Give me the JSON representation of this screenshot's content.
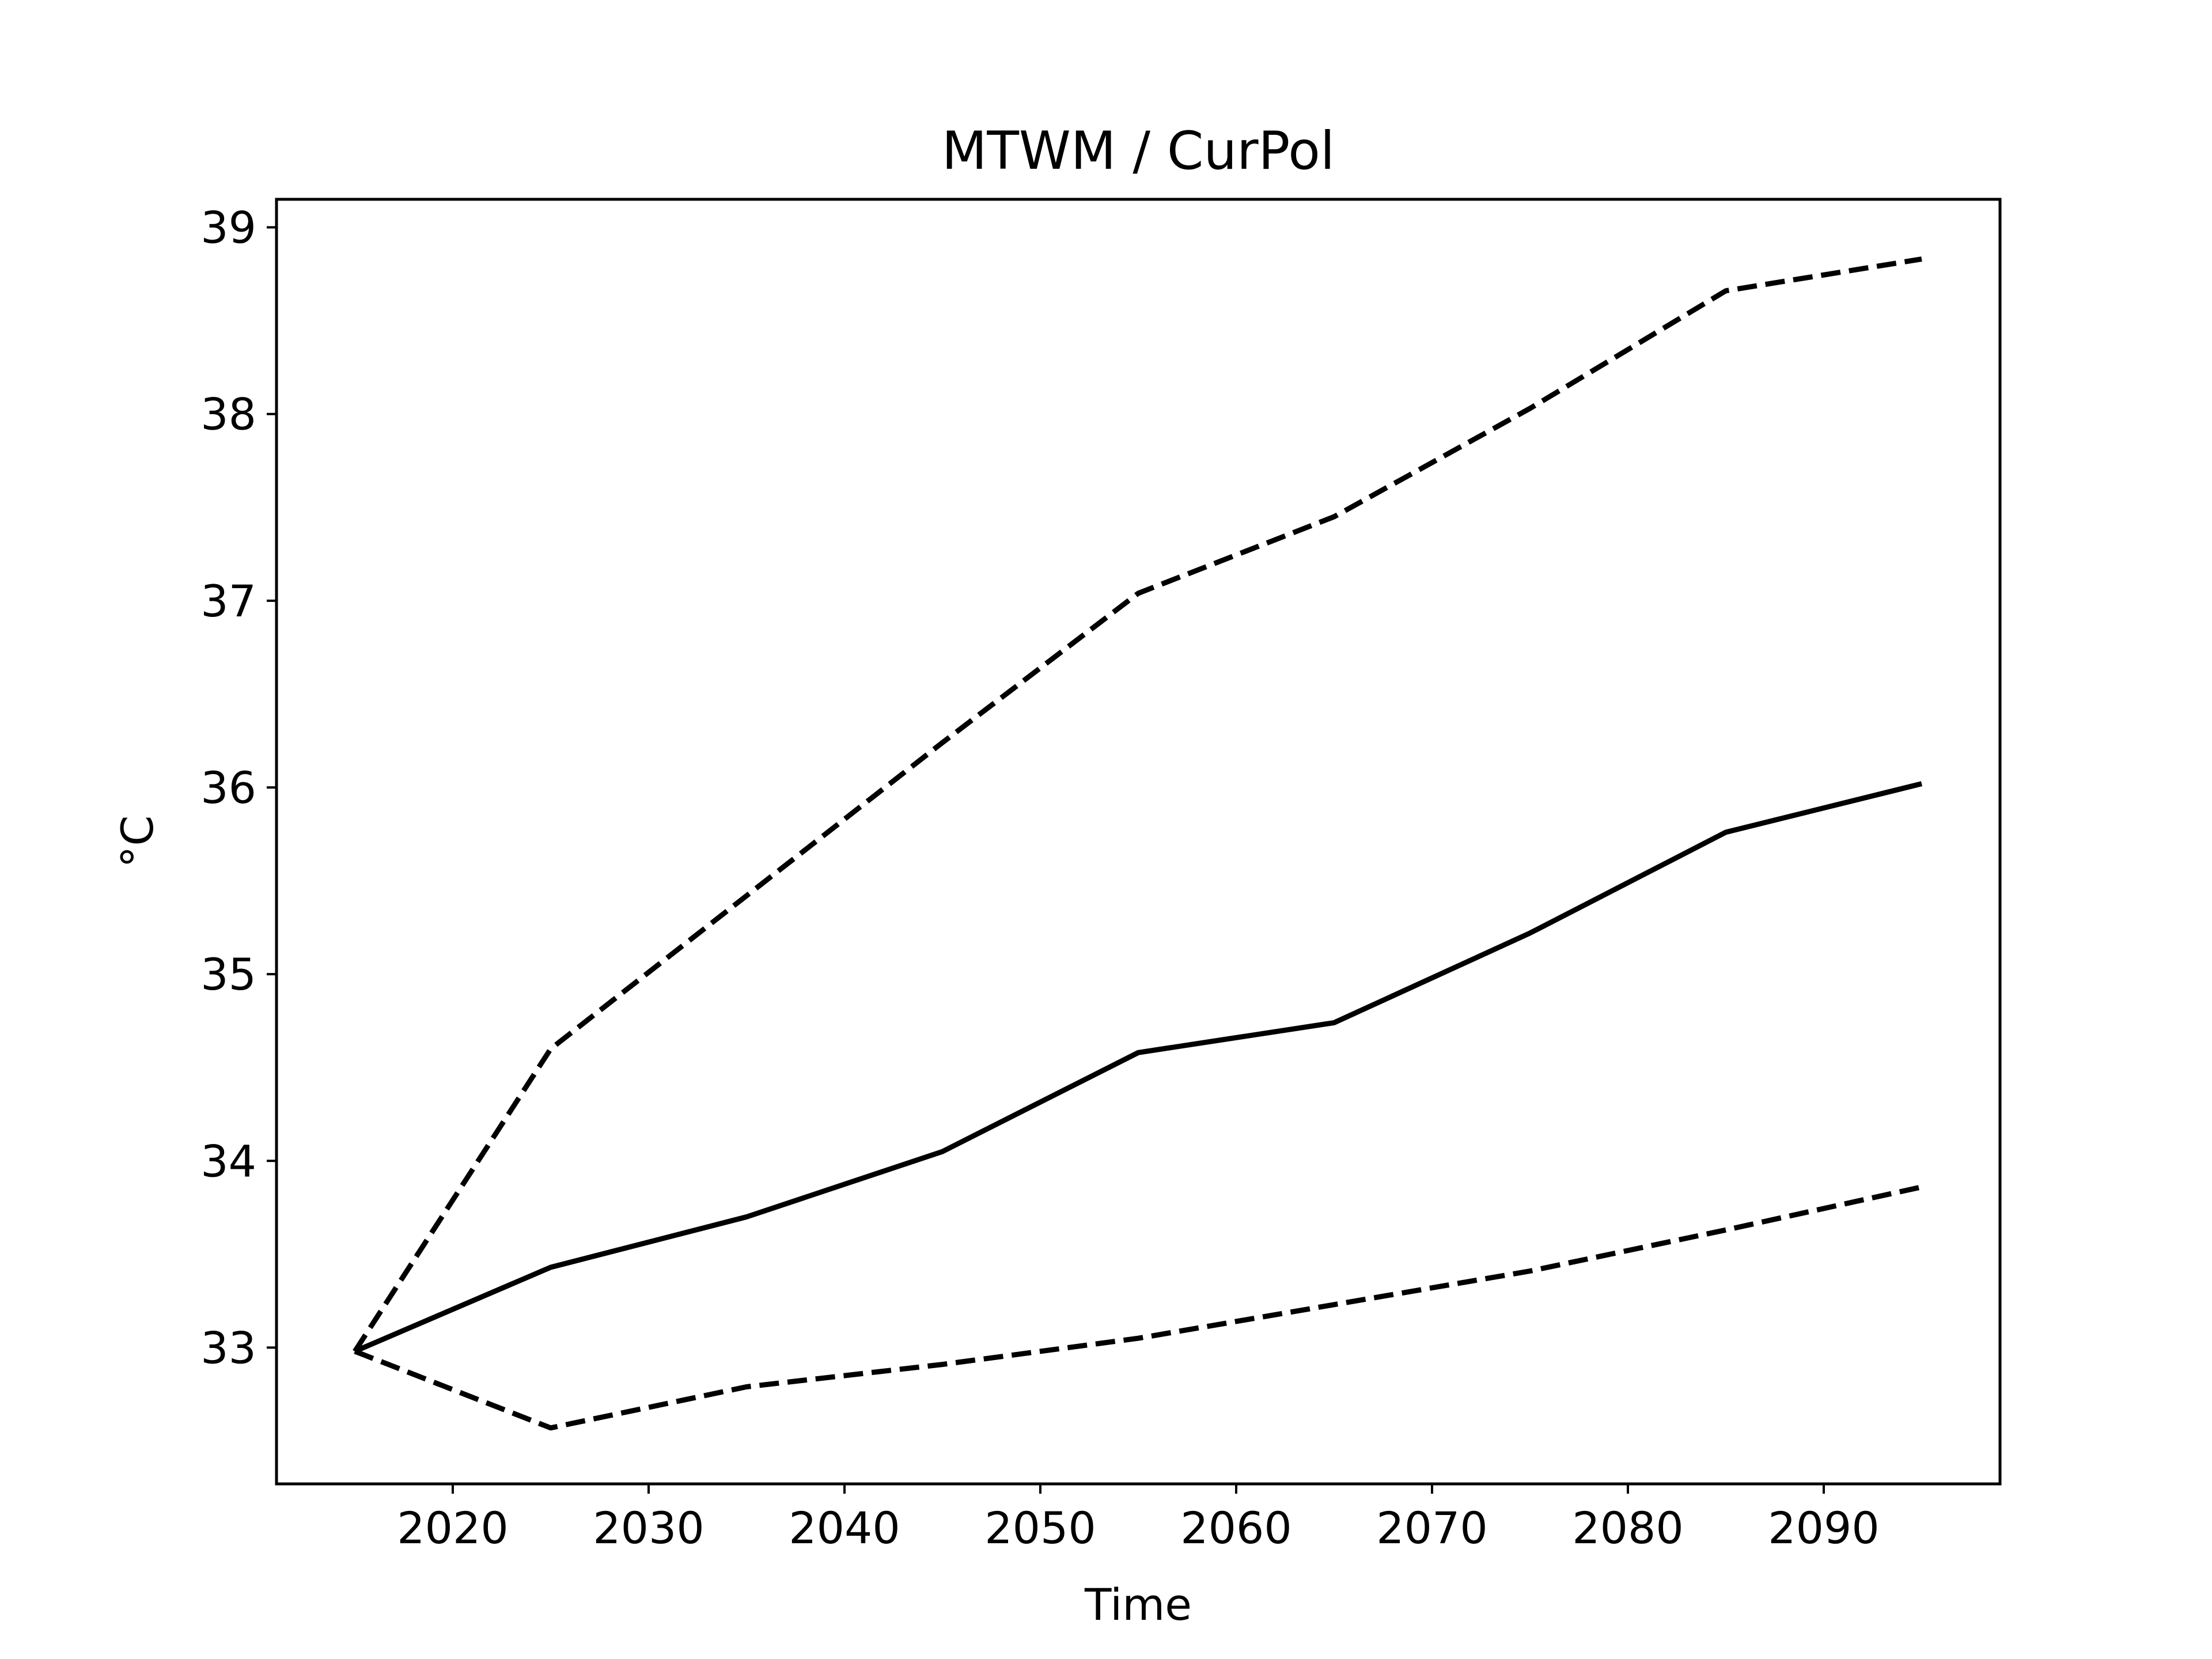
{
  "chart_data": {
    "type": "line",
    "title": "MTWM / CurPol",
    "xlabel": "Time",
    "ylabel": "°C",
    "x": [
      2015,
      2025,
      2035,
      2045,
      2055,
      2065,
      2075,
      2085,
      2095
    ],
    "xlim": [
      2011,
      2099
    ],
    "ylim": [
      32.27,
      39.15
    ],
    "xticks": [
      2020,
      2030,
      2040,
      2050,
      2060,
      2070,
      2080,
      2090
    ],
    "yticks": [
      33,
      34,
      35,
      36,
      37,
      38,
      39
    ],
    "grid": false,
    "legend": "none",
    "series": [
      {
        "style": "solid",
        "color": "#000000",
        "values": [
          32.98,
          33.43,
          33.7,
          34.05,
          34.58,
          34.74,
          35.22,
          35.76,
          36.02
        ]
      },
      {
        "style": "dashed",
        "color": "#000000",
        "values": [
          32.98,
          34.6,
          35.42,
          36.24,
          37.04,
          37.45,
          38.03,
          38.66,
          38.83
        ]
      },
      {
        "style": "dashed",
        "color": "#000000",
        "values": [
          32.98,
          32.57,
          32.79,
          32.91,
          33.05,
          33.23,
          33.41,
          33.63,
          33.86
        ]
      }
    ]
  }
}
